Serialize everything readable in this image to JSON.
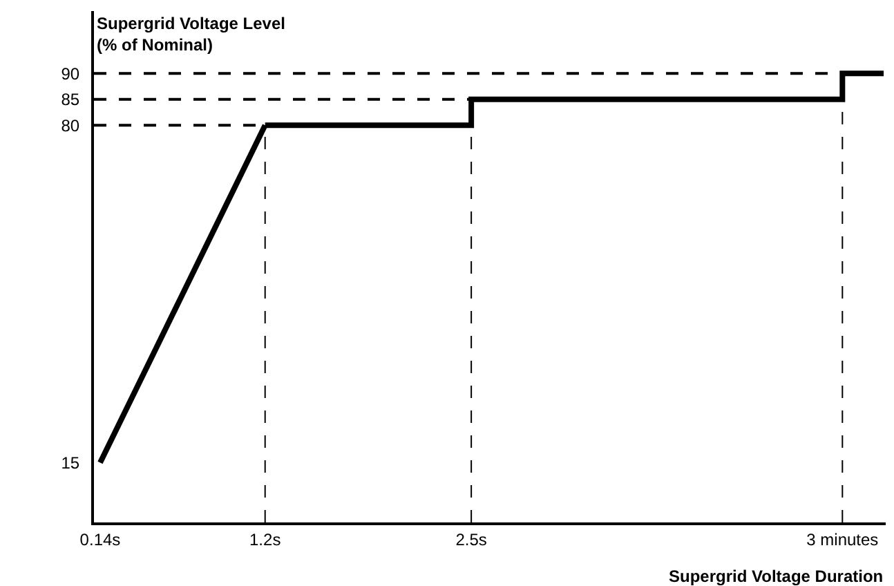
{
  "chart_data": {
    "type": "line",
    "xlabel": "Supergrid Voltage Duration",
    "ylabel": "Supergrid Voltage Level\n(% of Nominal)",
    "categories": [
      "0.14s",
      null,
      null,
      null,
      "1.2s",
      null,
      null,
      null,
      null,
      "2.5s",
      null,
      null,
      null,
      null,
      null,
      null,
      null,
      null,
      "3 minutes",
      null
    ],
    "series": [
      {
        "color": "#000000",
        "values": [
          15,
          null,
          null,
          null,
          80,
          null,
          null,
          null,
          null,
          null,
          null,
          null,
          null,
          null,
          null,
          null,
          null,
          null,
          null,
          null
        ]
      },
      {
        "type": "step",
        "color": "#000000",
        "values": [
          null,
          null,
          null,
          null,
          80,
          null,
          null,
          null,
          null,
          85,
          null,
          null,
          null,
          null,
          null,
          null,
          null,
          null,
          90,
          90
        ]
      }
    ],
    "ylim": [
      3.5,
      102
    ],
    "yticks": [
      15,
      80,
      85,
      90
    ],
    "ref_lines": [
      {
        "axis": "y",
        "value": 80,
        "line_style": "dashed"
      },
      {
        "axis": "y",
        "value": 85,
        "line_style": "dashed"
      },
      {
        "axis": "y",
        "value": 90,
        "line_style": "dashed"
      },
      {
        "axis": "x",
        "value": "1.2s",
        "line_style": "dashed"
      },
      {
        "axis": "x",
        "value": "2.5s",
        "line_style": "dashed"
      },
      {
        "axis": "x",
        "value": "3 minutes",
        "line_style": "dashed"
      }
    ],
    "grid": false,
    "marker": "none",
    "line_style": "solid"
  }
}
